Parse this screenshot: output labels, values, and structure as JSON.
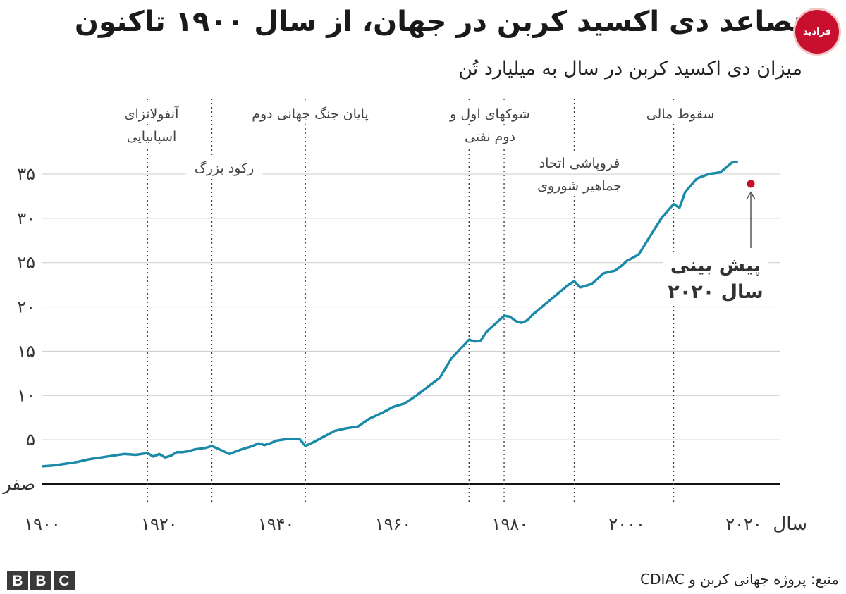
{
  "header": {
    "title": "تصاعد  دی اکسید کربن در جهان، از سال ۱۹۰۰ تاکنون",
    "subtitle": "میزان دی اکسید کربن در سال به میلیارد تُن",
    "logo_text": "فرادید"
  },
  "footer": {
    "brand": [
      "B",
      "B",
      "C"
    ],
    "source": "منبع: پروژه جهانی کربن و CDIAC"
  },
  "colors": {
    "line": "#1a8aa8",
    "forecast": "#c8102e",
    "grid": "#cccccc",
    "axis": "#111111"
  },
  "chart_data": {
    "type": "line",
    "title": "تصاعد  دی اکسید کربن در جهان، از سال ۱۹۰۰ تاکنون",
    "subtitle": "میزان دی اکسید کربن در سال به میلیارد تُن",
    "xlabel": "سال",
    "ylabel": "",
    "xlim": [
      1900,
      2020
    ],
    "ylim": [
      0,
      35
    ],
    "grid": true,
    "x_ticks": [
      {
        "value": 1900,
        "label": "۱۹۰۰"
      },
      {
        "value": 1920,
        "label": "۱۹۲۰"
      },
      {
        "value": 1940,
        "label": "۱۹۴۰"
      },
      {
        "value": 1960,
        "label": "۱۹۶۰"
      },
      {
        "value": 1980,
        "label": "۱۹۸۰"
      },
      {
        "value": 2000,
        "label": "۲۰۰۰"
      },
      {
        "value": 2020,
        "label": "۲۰۲۰"
      }
    ],
    "y_ticks": [
      {
        "value": 0,
        "label": "صفر"
      },
      {
        "value": 5,
        "label": "۵"
      },
      {
        "value": 10,
        "label": "۱۰"
      },
      {
        "value": 15,
        "label": "۱۵"
      },
      {
        "value": 20,
        "label": "۲۰"
      },
      {
        "value": 25,
        "label": "۲۵"
      },
      {
        "value": 30,
        "label": "۳۰"
      },
      {
        "value": 35,
        "label": "۳۵"
      }
    ],
    "series": [
      {
        "x": [
          1900,
          1902,
          1904,
          1906,
          1908,
          1910,
          1912,
          1914,
          1916,
          1918,
          1919,
          1920,
          1921,
          1922,
          1923,
          1924,
          1925,
          1926,
          1927,
          1928,
          1929,
          1930,
          1932,
          1934,
          1936,
          1937,
          1938,
          1939,
          1940,
          1942,
          1944,
          1945,
          1946,
          1948,
          1950,
          1952,
          1954,
          1956,
          1958,
          1960,
          1962,
          1964,
          1966,
          1968,
          1970,
          1972,
          1973,
          1974,
          1975,
          1976,
          1978,
          1979,
          1980,
          1981,
          1982,
          1983,
          1984,
          1986,
          1988,
          1990,
          1991,
          1992,
          1994,
          1996,
          1998,
          1999,
          2000,
          2002,
          2004,
          2006,
          2008,
          2009,
          2010,
          2012,
          2014,
          2016,
          2018,
          2019
        ],
        "values": [
          2.0,
          2.1,
          2.3,
          2.5,
          2.8,
          3.0,
          3.2,
          3.4,
          3.3,
          3.5,
          3.1,
          3.4,
          3.0,
          3.2,
          3.6,
          3.6,
          3.7,
          3.9,
          4.0,
          4.1,
          4.3,
          4.0,
          3.4,
          3.9,
          4.3,
          4.6,
          4.4,
          4.6,
          4.9,
          5.1,
          5.1,
          4.3,
          4.6,
          5.3,
          6.0,
          6.3,
          6.5,
          7.4,
          8.0,
          8.7,
          9.1,
          10.0,
          11.0,
          12.0,
          14.2,
          15.6,
          16.3,
          16.1,
          16.2,
          17.2,
          18.4,
          19.0,
          18.9,
          18.4,
          18.2,
          18.5,
          19.2,
          20.3,
          21.4,
          22.5,
          22.9,
          22.2,
          22.6,
          23.8,
          24.1,
          24.6,
          25.2,
          25.9,
          28.0,
          30.1,
          31.6,
          31.2,
          33.0,
          34.5,
          35.0,
          35.2,
          36.3,
          36.4
        ]
      }
    ],
    "forecast": {
      "x": 2020,
      "value": 33.9,
      "label": "پیش بینی سال ۲۰۲۰"
    },
    "events": [
      {
        "x": 1918,
        "label": "آنفولانزای\nاسپانیایی"
      },
      {
        "x": 1929,
        "label": "رکود بزرگ"
      },
      {
        "x": 1945,
        "label": "پایان جنگ جهانی دوم"
      },
      {
        "x": 1973,
        "label": "شوکهای اول و\nدوم نفتی"
      },
      {
        "x": 1979,
        "label": ""
      },
      {
        "x": 1991,
        "label": "فروپاشی اتحاد\nجماهیر شوروی"
      },
      {
        "x": 2008,
        "label": "سقوط مالی"
      }
    ]
  }
}
